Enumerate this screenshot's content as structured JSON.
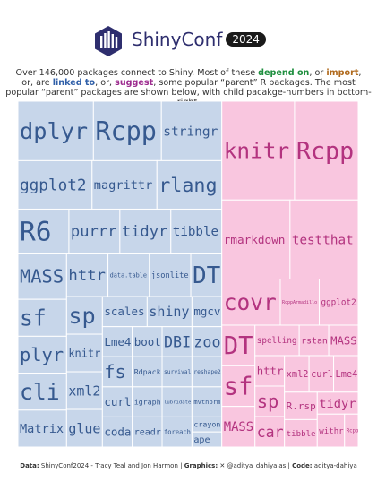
{
  "brand": {
    "name": "ShinyConf",
    "year": "2024"
  },
  "subtitle": {
    "l1a": "Over 146,000 packages connect to Shiny. Most of these ",
    "dep": "depend on",
    "l1b": ", or ",
    "imp": "import",
    "l1c": ",",
    "l2a": "or, are ",
    "lnk": "linked to",
    "l2b": ", or, ",
    "sug": "suggest",
    "l2c": ", some popular “parent” R packages. The most",
    "l3": "popular “parent” packages are shown below, with child pacakge-numbers in bottom-right."
  },
  "footer": {
    "data_label": "Data:",
    "data_text": " ShinyConf2024 - Tracy Teal and Jon Harmon | ",
    "graphics_label": "Graphics:",
    "graphics_text": " ✕ @aditya_dahiyaias | ",
    "code_label": "Code:",
    "code_text": " aditya-dahiya"
  },
  "colors": {
    "depend": "#c7ecd6",
    "depend_text": "#2f8f4f",
    "import": "#fbdcc0",
    "import_text": "#b5651d",
    "linkingto": "#f9c6df",
    "linkingto_text": "#b3337f",
    "suggests": "#c7d6ea",
    "suggests_text": "#36598f",
    "border": "#ffffff"
  },
  "chart_data": {
    "type": "treemap",
    "title": "",
    "groups": [
      {
        "name": "suggests",
        "packages": [
          {
            "name": "stringr",
            "size": 8
          },
          {
            "name": "magrittr",
            "size": 7
          },
          {
            "name": "rlang",
            "size": 7
          },
          {
            "name": "Rcpp",
            "size": 9
          },
          {
            "name": "ggplot2",
            "size": 8
          },
          {
            "name": "dplyr",
            "size": 10
          },
          {
            "name": "crayon",
            "size": 1
          },
          {
            "name": "ape",
            "size": 1
          },
          {
            "name": "mgcv",
            "size": 2
          },
          {
            "name": "Lme4",
            "size": 2
          },
          {
            "name": "boot",
            "size": 2
          },
          {
            "name": "DBI",
            "size": 2
          },
          {
            "name": "DT",
            "size": 3
          },
          {
            "name": "zoo",
            "size": 2
          },
          {
            "name": "fs",
            "size": 2
          },
          {
            "name": "curl",
            "size": 2
          },
          {
            "name": "sp",
            "size": 3
          },
          {
            "name": "coda",
            "size": 2
          },
          {
            "name": "Rdpack",
            "size": 2
          },
          {
            "name": "knitr",
            "size": 3
          },
          {
            "name": "xml2",
            "size": 3
          },
          {
            "name": "sf",
            "size": 4
          },
          {
            "name": "R6",
            "size": 5
          },
          {
            "name": "survival",
            "size": 2
          },
          {
            "name": "plyr",
            "size": 4
          },
          {
            "name": "reshape2",
            "size": 2
          },
          {
            "name": "igraph",
            "size": 2
          },
          {
            "name": "readr",
            "size": 2
          },
          {
            "name": "glue",
            "size": 3
          },
          {
            "name": "scales",
            "size": 3
          },
          {
            "name": "cli",
            "size": 4
          },
          {
            "name": "lubridate",
            "size": 2
          },
          {
            "name": "mvtnorm",
            "size": 2
          },
          {
            "name": "Matrix",
            "size": 4
          },
          {
            "name": "httr",
            "size": 4
          },
          {
            "name": "shiny",
            "size": 3
          },
          {
            "name": "foreach",
            "size": 2
          },
          {
            "name": "purrr",
            "size": 5
          },
          {
            "name": "data.table",
            "size": 4
          },
          {
            "name": "jsonlite",
            "size": 4
          },
          {
            "name": "tidyr",
            "size": 5
          },
          {
            "name": "tibble",
            "size": 5
          },
          {
            "name": "MASS",
            "size": 5
          }
        ]
      },
      {
        "name": "linkingto",
        "packages": [
          {
            "name": "Rcpp",
            "size": 14
          },
          {
            "name": "RcppArmadillo",
            "size": 4
          },
          {
            "name": "rstan",
            "size": 2
          },
          {
            "name": "MASS",
            "size": 2
          },
          {
            "name": "Rcpp",
            "size": 1
          },
          {
            "name": "rmarkdown",
            "size": 12
          },
          {
            "name": "knitr",
            "size": 16
          },
          {
            "name": "testthat",
            "size": 12
          },
          {
            "name": "httr",
            "size": 2
          },
          {
            "name": "sp",
            "size": 2
          },
          {
            "name": "car",
            "size": 2
          },
          {
            "name": "xml2",
            "size": 2
          },
          {
            "name": "curl",
            "size": 2
          },
          {
            "name": "DT",
            "size": 3
          },
          {
            "name": "Lme4",
            "size": 2
          },
          {
            "name": "sf",
            "size": 3
          },
          {
            "name": "R.rsp",
            "size": 2
          },
          {
            "name": "tibble",
            "size": 2
          },
          {
            "name": "tidyr",
            "size": 2
          },
          {
            "name": "withr",
            "size": 2
          },
          {
            "name": "MASS",
            "size": 3
          },
          {
            "name": "spelling",
            "size": 3
          },
          {
            "name": "ggplot2",
            "size": 4
          },
          {
            "name": "covr",
            "size": 6
          }
        ]
      }
    ]
  }
}
